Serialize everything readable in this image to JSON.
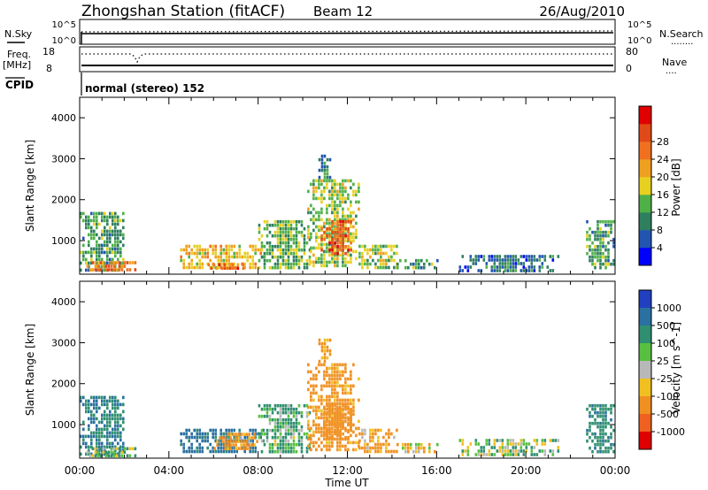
{
  "header": {
    "title": "Zhongshan Station (fitACF)",
    "beam": "Beam 12",
    "date": "26/Aug/2010"
  },
  "status_panels": {
    "nsky_label": "N.Sky",
    "nsearch_label": "N.Search",
    "nsearch_key": "........",
    "nsky_ticks": [
      "10^5",
      "10^0"
    ],
    "nsearch_ticks": [
      "10^5",
      "10^0"
    ],
    "freq_label": "Freq.",
    "freq_unit": "[MHz]",
    "freq_ticks": [
      "18",
      "8"
    ],
    "nave_label": "Nave",
    "nave_key": "....",
    "nave_ticks": [
      "80",
      "0"
    ],
    "cpid_label": "CPID",
    "cpid_value": "normal (stereo) 152"
  },
  "chart_data": [
    {
      "type": "heatmap",
      "title": "",
      "parameter": "Power",
      "ylabel": "Slant Range [km]",
      "xlabel": "",
      "ylim": [
        180,
        4500
      ],
      "xlim": [
        0,
        24
      ],
      "yticks": [
        "1000",
        "2000",
        "3000",
        "4000"
      ],
      "colorbar": {
        "label": "Power [dB]",
        "ticks": [
          "4",
          "8",
          "12",
          "16",
          "20",
          "24",
          "28"
        ],
        "colors": [
          "#0000ff",
          "#2255b0",
          "#2f7f5f",
          "#4fb048",
          "#e8d020",
          "#f0a020",
          "#f07020",
          "#e04a18",
          "#e00000"
        ]
      },
      "regions": [
        {
          "x": [
            0.0,
            2.0
          ],
          "y": [
            250,
            1700
          ],
          "value": 12
        },
        {
          "x": [
            0.3,
            2.5
          ],
          "y": [
            300,
            500
          ],
          "value": 26
        },
        {
          "x": [
            4.5,
            8.2
          ],
          "y": [
            300,
            900
          ],
          "value": 20
        },
        {
          "x": [
            5.5,
            7.5
          ],
          "y": [
            300,
            450
          ],
          "value": 28
        },
        {
          "x": [
            8.0,
            10.3
          ],
          "y": [
            350,
            1500
          ],
          "value": 14
        },
        {
          "x": [
            10.2,
            12.5
          ],
          "y": [
            400,
            2500
          ],
          "value": 16
        },
        {
          "x": [
            10.8,
            12.2
          ],
          "y": [
            700,
            1500
          ],
          "value": 28
        },
        {
          "x": [
            10.7,
            11.2
          ],
          "y": [
            2500,
            3100
          ],
          "value": 8
        },
        {
          "x": [
            12.5,
            14.2
          ],
          "y": [
            350,
            900
          ],
          "value": 16
        },
        {
          "x": [
            14.2,
            16.0
          ],
          "y": [
            300,
            550
          ],
          "value": 12
        },
        {
          "x": [
            17.0,
            21.5
          ],
          "y": [
            300,
            650
          ],
          "value": 8
        },
        {
          "x": [
            22.7,
            24.0
          ],
          "y": [
            300,
            1500
          ],
          "value": 12
        }
      ]
    },
    {
      "type": "heatmap",
      "title": "",
      "parameter": "Velocity",
      "ylabel": "Slant Range [km]",
      "xlabel": "Time UT",
      "ylim": [
        180,
        4500
      ],
      "xlim": [
        0,
        24
      ],
      "yticks": [
        "1000",
        "2000",
        "3000",
        "4000"
      ],
      "xticks": [
        "00:00",
        "04:00",
        "08:00",
        "12:00",
        "16:00",
        "20:00",
        "00:00"
      ],
      "colorbar": {
        "label": "Velocity [m s^-1]",
        "ticks": [
          "1000",
          "500",
          "100",
          "25",
          "-25",
          "-100",
          "-500",
          "-1000"
        ],
        "colors": [
          "#2040c0",
          "#2a70a0",
          "#2f8f70",
          "#58c040",
          "#b8b8b8",
          "#f0c020",
          "#f09020",
          "#f06020",
          "#e00000"
        ]
      },
      "regions": [
        {
          "x": [
            0.0,
            2.0
          ],
          "y": [
            250,
            1700
          ],
          "value": 500
        },
        {
          "x": [
            0.3,
            2.5
          ],
          "y": [
            250,
            450
          ],
          "value": 80
        },
        {
          "x": [
            4.5,
            8.2
          ],
          "y": [
            300,
            900
          ],
          "value": 600
        },
        {
          "x": [
            6.0,
            8.0
          ],
          "y": [
            450,
            800
          ],
          "value": -150
        },
        {
          "x": [
            8.0,
            10.3
          ],
          "y": [
            350,
            1500
          ],
          "value": 120
        },
        {
          "x": [
            10.2,
            12.5
          ],
          "y": [
            400,
            2500
          ],
          "value": -200
        },
        {
          "x": [
            10.8,
            12.2
          ],
          "y": [
            700,
            1500
          ],
          "value": -300
        },
        {
          "x": [
            10.7,
            11.2
          ],
          "y": [
            2500,
            3100
          ],
          "value": -200
        },
        {
          "x": [
            12.5,
            14.2
          ],
          "y": [
            350,
            900
          ],
          "value": -150
        },
        {
          "x": [
            14.2,
            16.0
          ],
          "y": [
            300,
            550
          ],
          "value": -60
        },
        {
          "x": [
            17.0,
            21.5
          ],
          "y": [
            300,
            650
          ],
          "value": 50
        },
        {
          "x": [
            22.7,
            24.0
          ],
          "y": [
            300,
            1500
          ],
          "value": 400
        }
      ]
    }
  ]
}
